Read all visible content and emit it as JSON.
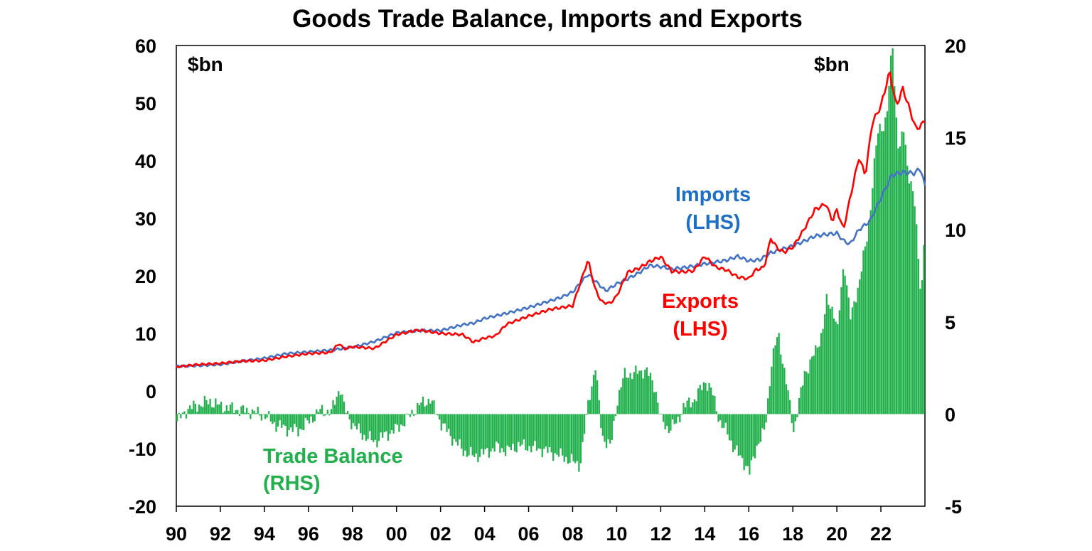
{
  "chart_data": {
    "type": "line",
    "title": "Goods Trade Balance, Imports and Exports",
    "left_axis": {
      "unit_label": "$bn",
      "ticks": [
        "60",
        "50",
        "40",
        "30",
        "20",
        "10",
        "0",
        "-10",
        "-20"
      ],
      "ylim": [
        -20,
        60
      ]
    },
    "right_axis": {
      "unit_label": "$bn",
      "ticks": [
        "20",
        "15",
        "10",
        "5",
        "0",
        "-5"
      ],
      "ylim": [
        -5,
        20
      ]
    },
    "x_ticks": [
      "90",
      "92",
      "94",
      "96",
      "98",
      "00",
      "02",
      "04",
      "06",
      "08",
      "10",
      "12",
      "14",
      "16",
      "18",
      "20",
      "22"
    ],
    "x_range": [
      1990,
      2024
    ],
    "colors": {
      "imports": "#4472c4",
      "exports": "#ff0000",
      "balance": "#21b04b"
    },
    "annotations": {
      "imports": [
        "Imports",
        "(LHS)"
      ],
      "exports": [
        "Exports",
        "(LHS)"
      ],
      "balance": [
        "Trade Balance",
        "(RHS)"
      ]
    },
    "series": [
      {
        "name": "Imports (LHS)",
        "axis": "left",
        "type": "line",
        "x": [
          1990.0,
          1991.0,
          1992.0,
          1993.0,
          1994.0,
          1995.0,
          1996.0,
          1997.0,
          1998.0,
          1999.0,
          2000.0,
          2001.0,
          2002.0,
          2003.0,
          2003.5,
          2004.0,
          2005.0,
          2006.0,
          2007.0,
          2007.5,
          2008.0,
          2008.7,
          2009.0,
          2009.5,
          2010.0,
          2010.5,
          2011.0,
          2011.5,
          2012.0,
          2012.5,
          2013.0,
          2013.5,
          2014.0,
          2014.5,
          2015.0,
          2015.5,
          2016.0,
          2016.5,
          2017.0,
          2017.5,
          2018.0,
          2018.5,
          2019.0,
          2019.5,
          2020.0,
          2020.3,
          2020.6,
          2021.0,
          2021.5,
          2022.0,
          2022.5,
          2023.0,
          2023.5,
          2023.8,
          2024.0
        ],
        "y": [
          4.3,
          4.4,
          4.6,
          5.2,
          5.7,
          6.5,
          6.8,
          7.1,
          7.6,
          8.6,
          10.1,
          10.5,
          10.5,
          11.5,
          11.8,
          12.6,
          13.5,
          14.5,
          15.7,
          16.3,
          17.2,
          20.3,
          19.2,
          17.4,
          18.6,
          19.5,
          20.5,
          21.8,
          21.6,
          21.2,
          21.4,
          21.7,
          22.1,
          22.4,
          22.7,
          23.4,
          22.6,
          22.8,
          24.0,
          24.6,
          25.2,
          26.0,
          26.9,
          27.2,
          27.4,
          26.1,
          25.5,
          28.0,
          29.5,
          33.5,
          37.5,
          38.0,
          37.8,
          38.7,
          35.5
        ]
      },
      {
        "name": "Exports (LHS)",
        "axis": "left",
        "type": "line",
        "x": [
          1990.0,
          1991.0,
          1992.0,
          1993.0,
          1994.0,
          1995.0,
          1996.0,
          1997.0,
          1997.4,
          1997.6,
          1998.0,
          1999.0,
          2000.0,
          2001.0,
          2002.0,
          2003.0,
          2003.5,
          2004.0,
          2004.5,
          2005.0,
          2006.0,
          2007.0,
          2008.0,
          2008.7,
          2009.0,
          2009.3,
          2009.7,
          2010.0,
          2010.5,
          2011.0,
          2011.5,
          2012.0,
          2012.5,
          2013.0,
          2013.5,
          2014.0,
          2014.5,
          2015.0,
          2015.5,
          2016.0,
          2016.3,
          2016.7,
          2017.0,
          2017.3,
          2017.6,
          2018.0,
          2018.5,
          2019.0,
          2019.5,
          2019.8,
          2020.0,
          2020.3,
          2020.6,
          2021.0,
          2021.3,
          2021.6,
          2022.0,
          2022.4,
          2022.7,
          2023.0,
          2023.3,
          2023.6,
          2023.8,
          2024.0
        ],
        "y": [
          4.2,
          4.6,
          4.8,
          5.2,
          5.3,
          6.0,
          6.5,
          6.7,
          8.3,
          7.3,
          7.7,
          7.4,
          9.8,
          10.6,
          10.0,
          9.8,
          8.5,
          9.2,
          9.6,
          11.6,
          13.0,
          14.2,
          14.8,
          22.8,
          18.0,
          15.5,
          15.2,
          16.5,
          20.6,
          21.3,
          22.5,
          23.3,
          20.8,
          20.7,
          20.9,
          23.4,
          21.5,
          21.0,
          19.8,
          19.5,
          21.0,
          21.5,
          26.5,
          24.8,
          24.1,
          25.0,
          28.0,
          31.5,
          32.5,
          29.5,
          31.5,
          28.0,
          33.5,
          40.5,
          37.5,
          46.5,
          49.5,
          55.5,
          49.5,
          52.5,
          49.0,
          45.5,
          46.0,
          47.0
        ]
      },
      {
        "name": "Trade Balance (RHS)",
        "axis": "right",
        "type": "bar",
        "x": [
          1990.0,
          1990.5,
          1991.0,
          1991.5,
          1992.0,
          1992.5,
          1993.0,
          1993.5,
          1994.0,
          1994.5,
          1995.0,
          1995.5,
          1996.0,
          1996.5,
          1997.0,
          1997.4,
          1997.6,
          1998.0,
          1998.5,
          1999.0,
          1999.5,
          2000.0,
          2000.5,
          2001.0,
          2001.5,
          2002.0,
          2002.5,
          2003.0,
          2003.5,
          2004.0,
          2004.5,
          2005.0,
          2005.5,
          2006.0,
          2006.5,
          2007.0,
          2007.5,
          2008.0,
          2008.3,
          2008.7,
          2009.0,
          2009.3,
          2009.7,
          2010.0,
          2010.3,
          2010.7,
          2011.0,
          2011.3,
          2011.7,
          2012.0,
          2012.3,
          2012.7,
          2013.0,
          2013.5,
          2014.0,
          2014.3,
          2014.7,
          2015.0,
          2015.3,
          2015.7,
          2016.0,
          2016.3,
          2016.7,
          2017.0,
          2017.3,
          2017.7,
          2018.0,
          2018.5,
          2019.0,
          2019.3,
          2019.5,
          2019.8,
          2020.0,
          2020.3,
          2020.6,
          2021.0,
          2021.3,
          2021.6,
          2022.0,
          2022.3,
          2022.5,
          2022.8,
          2023.0,
          2023.3,
          2023.5,
          2023.8,
          2024.0
        ],
        "y": [
          -0.4,
          0.3,
          0.5,
          0.7,
          0.4,
          0.3,
          0.2,
          0.1,
          -0.1,
          -0.6,
          -0.8,
          -0.9,
          -0.4,
          0.2,
          0.1,
          1.5,
          0.3,
          -0.6,
          -1.2,
          -1.5,
          -1.1,
          -0.8,
          -0.2,
          0.5,
          0.8,
          -0.5,
          -1.3,
          -2.0,
          -2.3,
          -2.1,
          -1.8,
          -2.0,
          -1.7,
          -1.8,
          -1.9,
          -2.1,
          -2.3,
          -2.6,
          -2.8,
          0.8,
          2.6,
          -1.2,
          -1.8,
          0.8,
          2.1,
          2.2,
          2.3,
          2.4,
          1.5,
          -0.4,
          -0.8,
          -0.5,
          0.4,
          0.8,
          1.8,
          1.2,
          -0.6,
          -1.0,
          -1.9,
          -2.5,
          -3.2,
          -1.8,
          -0.9,
          2.8,
          4.4,
          1.5,
          -0.9,
          2.2,
          3.4,
          4.5,
          6.0,
          5.8,
          4.5,
          8.5,
          5.0,
          7.5,
          9.0,
          13.0,
          16.0,
          16.5,
          20.0,
          14.0,
          15.0,
          13.0,
          11.0,
          6.5,
          11.5
        ]
      }
    ]
  }
}
